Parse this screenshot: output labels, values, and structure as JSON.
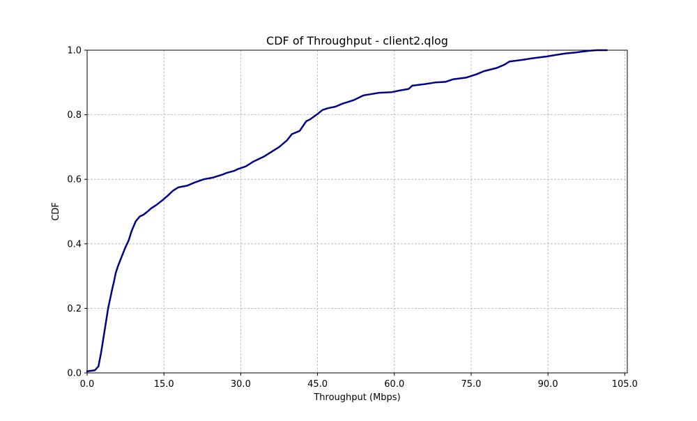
{
  "chart_data": {
    "type": "line",
    "title": "CDF of Throughput - client2.qlog",
    "xlabel": "Throughput (Mbps)",
    "ylabel": "CDF",
    "xlim": [
      0,
      105.5
    ],
    "ylim": [
      0,
      1.0
    ],
    "xticks": [
      0,
      15,
      30,
      45,
      60,
      75,
      90,
      105
    ],
    "xtick_labels": [
      "0.0",
      "15.0",
      "30.0",
      "45.0",
      "60.0",
      "75.0",
      "90.0",
      "105.0"
    ],
    "yticks": [
      0,
      0.2,
      0.4,
      0.6,
      0.8,
      1.0
    ],
    "ytick_labels": [
      "0.0",
      "0.2",
      "0.4",
      "0.6",
      "0.8",
      "1.0"
    ],
    "grid": true,
    "line_color": "#00008B",
    "series": [
      {
        "x": [
          0,
          1.5,
          2.2,
          2.7,
          3.1,
          3.4,
          3.7,
          4.1,
          4.5,
          4.9,
          5.2,
          5.6,
          6.0,
          6.5,
          7.0,
          7.5,
          8.1,
          8.7,
          9.5,
          10.3,
          11.0,
          11.8,
          12.5,
          13.5,
          14.7,
          15.8,
          16.8,
          17.8,
          18.8,
          19.5,
          21.0,
          22.8,
          24.5,
          26.5,
          27.3,
          28.7,
          29.5,
          31.0,
          32.5,
          34.5,
          36.0,
          37.5,
          39.0,
          40.0,
          41.5,
          42.8,
          43.5,
          44.8,
          46.0,
          47.0,
          48.5,
          50.0,
          52.0,
          54.0,
          57.0,
          59.5,
          61.0,
          62.8,
          63.5,
          66.0,
          68.0,
          70.0,
          71.5,
          74.0,
          76.0,
          77.5,
          80.0,
          81.5,
          82.5,
          85.0,
          87.0,
          89.5,
          91.5,
          93.5,
          95.5,
          96.5,
          98.0,
          99.5,
          101.5
        ],
        "y": [
          0.005,
          0.008,
          0.02,
          0.06,
          0.1,
          0.13,
          0.16,
          0.2,
          0.23,
          0.26,
          0.28,
          0.31,
          0.33,
          0.35,
          0.37,
          0.39,
          0.41,
          0.44,
          0.47,
          0.485,
          0.49,
          0.5,
          0.51,
          0.52,
          0.535,
          0.55,
          0.565,
          0.575,
          0.578,
          0.58,
          0.59,
          0.6,
          0.605,
          0.615,
          0.62,
          0.626,
          0.632,
          0.64,
          0.655,
          0.67,
          0.685,
          0.7,
          0.72,
          0.74,
          0.75,
          0.78,
          0.785,
          0.8,
          0.815,
          0.82,
          0.825,
          0.835,
          0.845,
          0.86,
          0.868,
          0.87,
          0.875,
          0.88,
          0.89,
          0.895,
          0.9,
          0.902,
          0.91,
          0.915,
          0.925,
          0.935,
          0.945,
          0.955,
          0.965,
          0.97,
          0.975,
          0.98,
          0.985,
          0.99,
          0.993,
          0.995,
          0.998,
          1.0,
          1.0
        ]
      }
    ]
  }
}
